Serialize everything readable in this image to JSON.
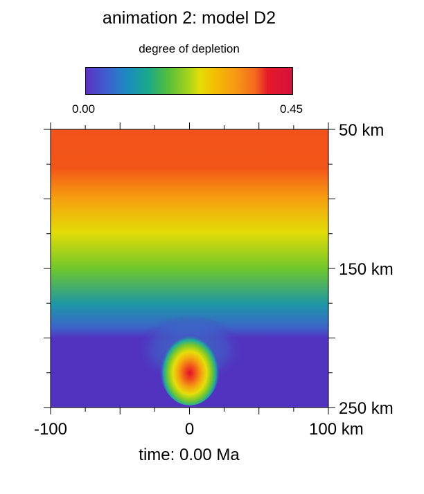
{
  "title": "animation 2: model D2",
  "colorbar": {
    "label": "degree of depletion",
    "min_label": "0.00",
    "max_label": "0.45",
    "min": 0.0,
    "max": 0.45
  },
  "time_label": "time: 0.00 Ma",
  "chart_data": {
    "type": "heatmap",
    "title": "animation 2: model D2",
    "colorbar_label": "degree of depletion",
    "value_range": [
      0.0,
      0.45
    ],
    "x_ticks": [
      "-100",
      "0",
      "100 km"
    ],
    "x_tick_values": [
      -100,
      0,
      100
    ],
    "xlim": [
      -100,
      100
    ],
    "y_ticks": [
      "50 km",
      "150 km",
      "250 km"
    ],
    "y_tick_values": [
      50,
      150,
      250
    ],
    "ylim": [
      50,
      250
    ],
    "depth_profile": {
      "depth_km": [
        50,
        80,
        100,
        125,
        150,
        170,
        200,
        250
      ],
      "depletion": [
        0.38,
        0.36,
        0.27,
        0.2,
        0.15,
        0.08,
        0.0,
        0.0
      ]
    },
    "anomaly": {
      "center_x_km": 0,
      "center_depth_km": 225,
      "peak_depletion": 0.4
    },
    "annotation": "time: 0.00 Ma"
  }
}
